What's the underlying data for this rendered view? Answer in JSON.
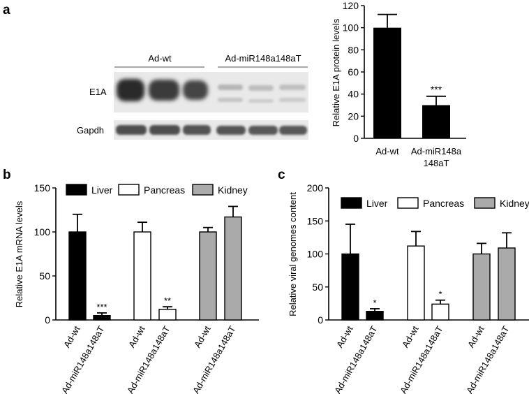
{
  "panels": {
    "a": "a",
    "b": "b",
    "c": "c"
  },
  "blot": {
    "group_labels": [
      "Ad-wt",
      "Ad-miR148a148aT"
    ],
    "rows": [
      "E1A",
      "Gapdh"
    ]
  },
  "chart_data": [
    {
      "type": "bar",
      "panel": "a",
      "categories": [
        "Ad-wt",
        "Ad-miR148a 148aT"
      ],
      "category_lines": [
        [
          "Ad-wt"
        ],
        [
          "Ad-miR148a",
          "148aT"
        ]
      ],
      "values": [
        100,
        30
      ],
      "errors": [
        12,
        8
      ],
      "significance": [
        "",
        "***"
      ],
      "ylabel": "Relative E1A protein levels",
      "ylim": [
        0,
        120
      ],
      "yticks": [
        0,
        20,
        40,
        60,
        80,
        100,
        120
      ],
      "grid": false,
      "colors": {
        "bar": "#000000"
      }
    },
    {
      "type": "bar",
      "panel": "b",
      "categories": [
        "Ad-wt",
        "Ad-miR148a148aT"
      ],
      "series": [
        {
          "name": "Liver",
          "values": [
            100,
            5
          ],
          "errors": [
            20,
            3
          ],
          "significance": [
            "",
            "***"
          ],
          "color": "#000000"
        },
        {
          "name": "Pancreas",
          "values": [
            100,
            12
          ],
          "errors": [
            11,
            3
          ],
          "significance": [
            "",
            "**"
          ],
          "color": "#ffffff"
        },
        {
          "name": "Kidney",
          "values": [
            100,
            117
          ],
          "errors": [
            5,
            12
          ],
          "significance": [
            "",
            ""
          ],
          "color": "#aaaaaa"
        }
      ],
      "ylabel": "Relative E1A mRNA levels",
      "ylim": [
        0,
        150
      ],
      "yticks": [
        0,
        50,
        100,
        150
      ],
      "legend": "top",
      "grid": false
    },
    {
      "type": "bar",
      "panel": "c",
      "categories": [
        "Ad-wt",
        "Ad-miR148a148aT"
      ],
      "series": [
        {
          "name": "Liver",
          "values": [
            100,
            13
          ],
          "errors": [
            45,
            4
          ],
          "significance": [
            "",
            "*"
          ],
          "color": "#000000"
        },
        {
          "name": "Pancreas",
          "values": [
            112,
            24
          ],
          "errors": [
            22,
            6
          ],
          "significance": [
            "",
            "*"
          ],
          "color": "#ffffff"
        },
        {
          "name": "Kidney",
          "values": [
            100,
            109
          ],
          "errors": [
            16,
            23
          ],
          "significance": [
            "",
            ""
          ],
          "color": "#aaaaaa"
        }
      ],
      "ylabel": "Relative viral genomes content",
      "ylim": [
        0,
        200
      ],
      "yticks": [
        0,
        50,
        100,
        150,
        200
      ],
      "legend": "top",
      "grid": false
    }
  ]
}
